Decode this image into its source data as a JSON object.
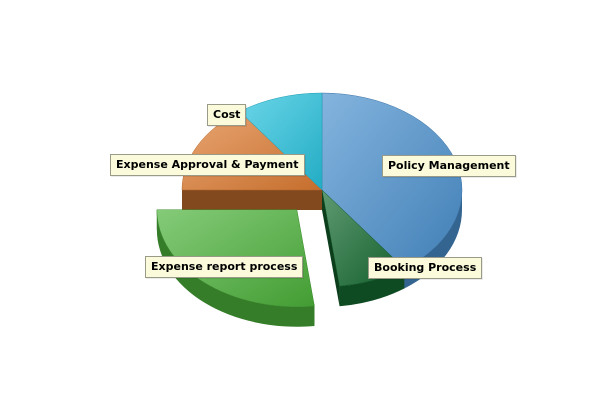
{
  "chart_data": {
    "type": "pie",
    "title": "",
    "categories": [
      "Policy Management",
      "Booking Process",
      "Expense report process",
      "Expense Approval & Payment",
      "Cost"
    ],
    "values": [
      40,
      8,
      27,
      15,
      10
    ],
    "exploded": [
      "Expense report process"
    ],
    "three_d": true,
    "colors": {
      "Policy Management": "#4a90cf",
      "Booking Process": "#146b30",
      "Expense report process": "#4cb23a",
      "Expense Approval & Payment": "#e07d33",
      "Cost": "#27c3df"
    },
    "labels": [
      {
        "text": "Policy Management"
      },
      {
        "text": "Booking Process"
      },
      {
        "text": "Expense report process"
      },
      {
        "text": "Expense Approval & Payment"
      },
      {
        "text": "Cost"
      }
    ]
  }
}
